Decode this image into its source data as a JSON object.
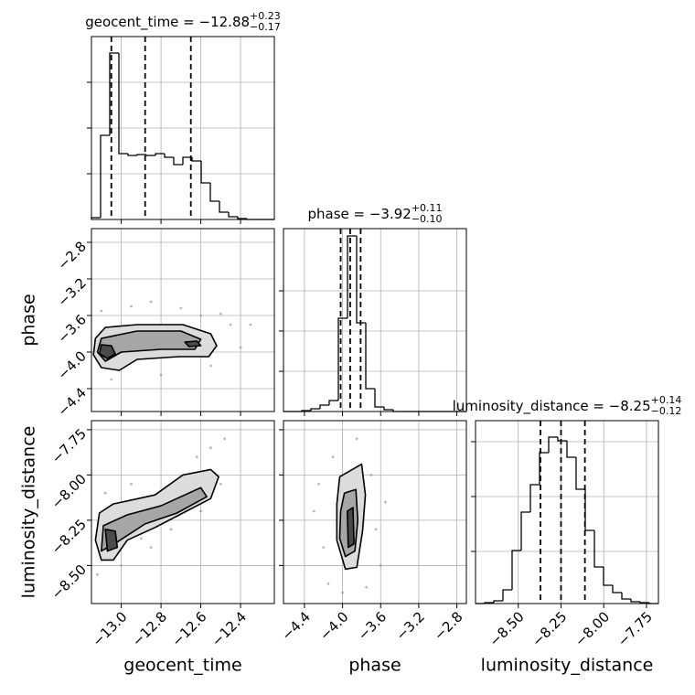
{
  "chart_data": [
    {
      "type": "histogram",
      "title": "geocent_time = −12.88",
      "title_sup": "+0.23",
      "title_sub": "−0.17",
      "bins": [
        -13.15,
        -13.104,
        -13.058,
        -13.012,
        -12.966,
        -12.92,
        -12.874,
        -12.828,
        -12.782,
        -12.736,
        -12.69,
        -12.644,
        -12.598,
        -12.552,
        -12.506,
        -12.46,
        -12.414,
        -12.368,
        -12.322,
        -12.276,
        -12.23
      ],
      "values": [
        2,
        92,
        182,
        72,
        70,
        71,
        70,
        72,
        68,
        60,
        68,
        64,
        40,
        20,
        8,
        3,
        1,
        0,
        0,
        0
      ],
      "quantiles": [
        -13.05,
        -12.88,
        -12.65
      ],
      "xlim": [
        -13.15,
        -12.23
      ],
      "ylim": [
        0,
        200
      ],
      "xticks": [
        -13.0,
        -12.8,
        -12.6,
        -12.4
      ],
      "yticks": [
        50,
        100,
        150
      ],
      "grid": true
    },
    {
      "type": "histogram",
      "title": "phase = −3.92",
      "title_sup": "+0.11",
      "title_sub": "−0.10",
      "bins": [
        -4.62,
        -4.524,
        -4.428,
        -4.332,
        -4.236,
        -4.14,
        -4.044,
        -3.948,
        -3.852,
        -3.756,
        -3.66,
        -3.564,
        -3.468,
        -3.372,
        -3.276,
        -3.18,
        -3.084,
        -2.988,
        -2.892,
        -2.796,
        -2.7
      ],
      "values": [
        0,
        0,
        1,
        3,
        7,
        12,
        102,
        192,
        97,
        25,
        5,
        2,
        0,
        0,
        0,
        0,
        0,
        0,
        0,
        0
      ],
      "quantiles": [
        -4.02,
        -3.92,
        -3.81
      ],
      "xlim": [
        -4.62,
        -2.7
      ],
      "ylim": [
        0,
        200
      ],
      "xticks": [
        -4.4,
        -4.0,
        -3.6,
        -3.2,
        -2.8
      ],
      "yticks": [
        44,
        88,
        132
      ],
      "grid": true
    },
    {
      "type": "histogram",
      "title": "luminosity_distance = −8.25",
      "title_sup": "+0.14",
      "title_sub": "−0.12",
      "bins": [
        -8.75,
        -8.6965,
        -8.643,
        -8.5895,
        -8.536,
        -8.4825,
        -8.429,
        -8.3755,
        -8.322,
        -8.2685,
        -8.215,
        -8.1615,
        -8.108,
        -8.0545,
        -8.001,
        -7.9475,
        -7.894,
        -7.8405,
        -7.787,
        -7.7335,
        -7.68
      ],
      "values": [
        0,
        1,
        3,
        15,
        58,
        100,
        130,
        165,
        182,
        178,
        160,
        125,
        80,
        40,
        20,
        12,
        5,
        2,
        1,
        0
      ],
      "quantiles": [
        -8.37,
        -8.25,
        -8.11
      ],
      "xlim": [
        -8.75,
        -7.68
      ],
      "ylim": [
        0,
        200
      ],
      "xlabel": "luminosity_distance",
      "xticks": [
        {
          "value": -8.5,
          "label": "−8.50"
        },
        {
          "value": -8.25,
          "label": "−8.25"
        },
        {
          "value": -8.0,
          "label": "−8.00"
        },
        {
          "value": -7.75,
          "label": "−7.75"
        }
      ],
      "yticks": [
        57,
        117,
        177
      ],
      "grid": true
    },
    {
      "type": "contour",
      "ylabel": "phase",
      "xlim": [
        -13.15,
        -12.23
      ],
      "ylim": [
        -4.65,
        -2.65
      ],
      "xticks": [
        -13.0,
        -12.8,
        -12.6,
        -12.4
      ],
      "yticks": [
        {
          "value": -4.4,
          "label": "−4.4"
        },
        {
          "value": -4.0,
          "label": "−4.0"
        },
        {
          "value": -3.6,
          "label": "−3.6"
        },
        {
          "value": -3.2,
          "label": "−3.2"
        },
        {
          "value": -2.8,
          "label": "−2.8"
        }
      ],
      "grid": true,
      "contours": [
        {
          "x": [
            -13.13,
            -13.08,
            -12.92,
            -12.69,
            -12.55,
            -12.52,
            -12.56,
            -12.71,
            -12.92,
            -13.01,
            -13.1,
            -13.14
          ],
          "y": [
            -3.85,
            -3.73,
            -3.7,
            -3.7,
            -3.8,
            -3.93,
            -4.05,
            -4.05,
            -4.08,
            -4.2,
            -4.17,
            -4.03
          ]
        },
        {
          "x": [
            -13.1,
            -12.92,
            -12.7,
            -12.6,
            -12.63,
            -12.8,
            -13.0,
            -13.08,
            -13.12
          ],
          "y": [
            -3.85,
            -3.77,
            -3.77,
            -3.86,
            -3.97,
            -3.97,
            -4.0,
            -4.1,
            -4.0
          ]
        },
        {
          "x": [
            -13.1,
            -13.05,
            -13.03,
            -13.07,
            -13.11
          ],
          "y": [
            -3.92,
            -3.93,
            -4.02,
            -4.07,
            -4.02
          ]
        },
        {
          "x": [
            -12.68,
            -12.62,
            -12.6,
            -12.66
          ],
          "y": [
            -3.89,
            -3.88,
            -3.93,
            -3.94
          ]
        }
      ],
      "scatter": {
        "x": [
          -13.1,
          -12.95,
          -12.85,
          -12.7,
          -12.6,
          -12.5,
          -12.45,
          -12.35,
          -13.05,
          -12.8,
          -12.55,
          -12.4
        ],
        "y": [
          -3.55,
          -3.5,
          -3.45,
          -3.52,
          -3.6,
          -3.58,
          -3.7,
          -3.7,
          -4.3,
          -4.25,
          -4.15,
          -3.95
        ]
      }
    },
    {
      "type": "contour",
      "xlabel": "geocent_time",
      "ylabel": "luminosity_distance",
      "xlim": [
        -13.15,
        -12.23
      ],
      "ylim": [
        -8.71,
        -7.7
      ],
      "xticks": [
        {
          "value": -13.0,
          "label": "−13.0"
        },
        {
          "value": -12.8,
          "label": "−12.8"
        },
        {
          "value": -12.6,
          "label": "−12.6"
        },
        {
          "value": -12.4,
          "label": "−12.4"
        }
      ],
      "yticks": [
        {
          "value": -8.5,
          "label": "−8.50"
        },
        {
          "value": -8.25,
          "label": "−8.25"
        },
        {
          "value": -8.0,
          "label": "−8.00"
        },
        {
          "value": -7.75,
          "label": "−7.75"
        }
      ],
      "grid": true,
      "contours": [
        {
          "x": [
            -13.11,
            -13.04,
            -12.83,
            -12.69,
            -12.55,
            -12.51,
            -12.55,
            -12.69,
            -12.83,
            -12.97,
            -13.04,
            -13.1,
            -13.13
          ],
          "y": [
            -8.21,
            -8.16,
            -8.11,
            -8.0,
            -7.97,
            -8.01,
            -8.13,
            -8.21,
            -8.29,
            -8.36,
            -8.47,
            -8.47,
            -8.36
          ]
        },
        {
          "x": [
            -13.09,
            -12.97,
            -12.8,
            -12.6,
            -12.57,
            -12.72,
            -12.88,
            -13.02,
            -13.1
          ],
          "y": [
            -8.28,
            -8.22,
            -8.17,
            -8.07,
            -8.12,
            -8.21,
            -8.27,
            -8.37,
            -8.42
          ]
        },
        {
          "x": [
            -13.08,
            -13.03,
            -13.02,
            -13.07
          ],
          "y": [
            -8.3,
            -8.31,
            -8.4,
            -8.42
          ]
        }
      ],
      "scatter": {
        "x": [
          -13.12,
          -13.0,
          -12.9,
          -12.75,
          -12.6,
          -12.55,
          -12.48,
          -12.62,
          -12.95,
          -13.08,
          -12.85,
          -12.5
        ],
        "y": [
          -8.55,
          -8.5,
          -8.35,
          -8.3,
          -8.2,
          -7.85,
          -7.8,
          -7.9,
          -8.05,
          -8.1,
          -8.4,
          -8.05
        ]
      }
    },
    {
      "type": "contour",
      "xlabel": "phase",
      "xlim": [
        -4.62,
        -2.7
      ],
      "ylim": [
        -8.71,
        -7.7
      ],
      "xticks": [
        {
          "value": -4.4,
          "label": "−4.4"
        },
        {
          "value": -4.0,
          "label": "−4.0"
        },
        {
          "value": -3.6,
          "label": "−3.6"
        },
        {
          "value": -3.2,
          "label": "−3.2"
        },
        {
          "value": -2.8,
          "label": "−2.8"
        }
      ],
      "yticks": [
        -8.5,
        -8.25,
        -8.0,
        -7.75
      ],
      "grid": true,
      "contours": [
        {
          "x": [
            -4.03,
            -3.8,
            -3.76,
            -3.79,
            -3.85,
            -3.97,
            -4.06,
            -4.06
          ],
          "y": [
            -8.01,
            -7.94,
            -8.11,
            -8.31,
            -8.51,
            -8.52,
            -8.36,
            -8.16
          ]
        },
        {
          "x": [
            -3.98,
            -3.86,
            -3.84,
            -3.87,
            -3.97,
            -4.03,
            -4.02
          ],
          "y": [
            -8.1,
            -8.08,
            -8.25,
            -8.42,
            -8.45,
            -8.35,
            -8.2
          ]
        },
        {
          "x": [
            -3.95,
            -3.89,
            -3.88,
            -3.94
          ],
          "y": [
            -8.2,
            -8.18,
            -8.38,
            -8.4
          ]
        }
      ],
      "scatter": {
        "x": [
          -4.3,
          -4.2,
          -4.15,
          -3.7,
          -3.65,
          -3.55,
          -3.85,
          -4.1,
          -3.6,
          -4.25,
          -3.75,
          -4.0
        ],
        "y": [
          -8.2,
          -8.4,
          -8.6,
          -8.0,
          -8.3,
          -8.15,
          -7.8,
          -7.9,
          -8.5,
          -8.05,
          -8.62,
          -8.65
        ]
      }
    }
  ]
}
